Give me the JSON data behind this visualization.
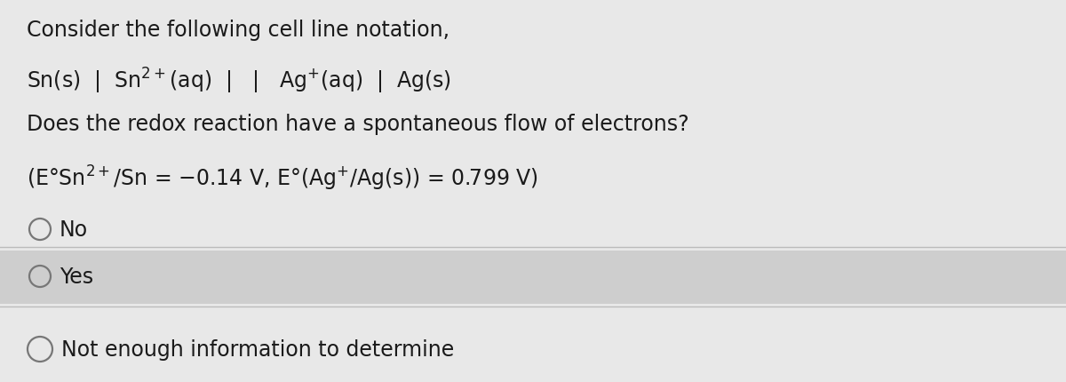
{
  "background_color": "#e8e8e8",
  "highlight_color": "#cecece",
  "text_color": "#1a1a1a",
  "line1": "Consider the following cell line notation,",
  "line2": "Sn(s)  |  Sn$^{2+}$(aq)  |   |   Ag$^{+}$(aq)  |  Ag(s)",
  "line3": "Does the redox reaction have a spontaneous flow of electrons?",
  "line4": "(E°Sn$^{2+}$/Sn = −0.14 V, E°(Ag$^{+}$/Ag(s)) = 0.799 V)",
  "option_no": "No",
  "option_yes": "Yes",
  "option_neither": "Not enough information to determine",
  "font_size": 17,
  "circle_color": "#777777",
  "divider_color": "#bbbbbb",
  "fig_width": 12.0,
  "fig_height": 4.31,
  "dpi": 100
}
